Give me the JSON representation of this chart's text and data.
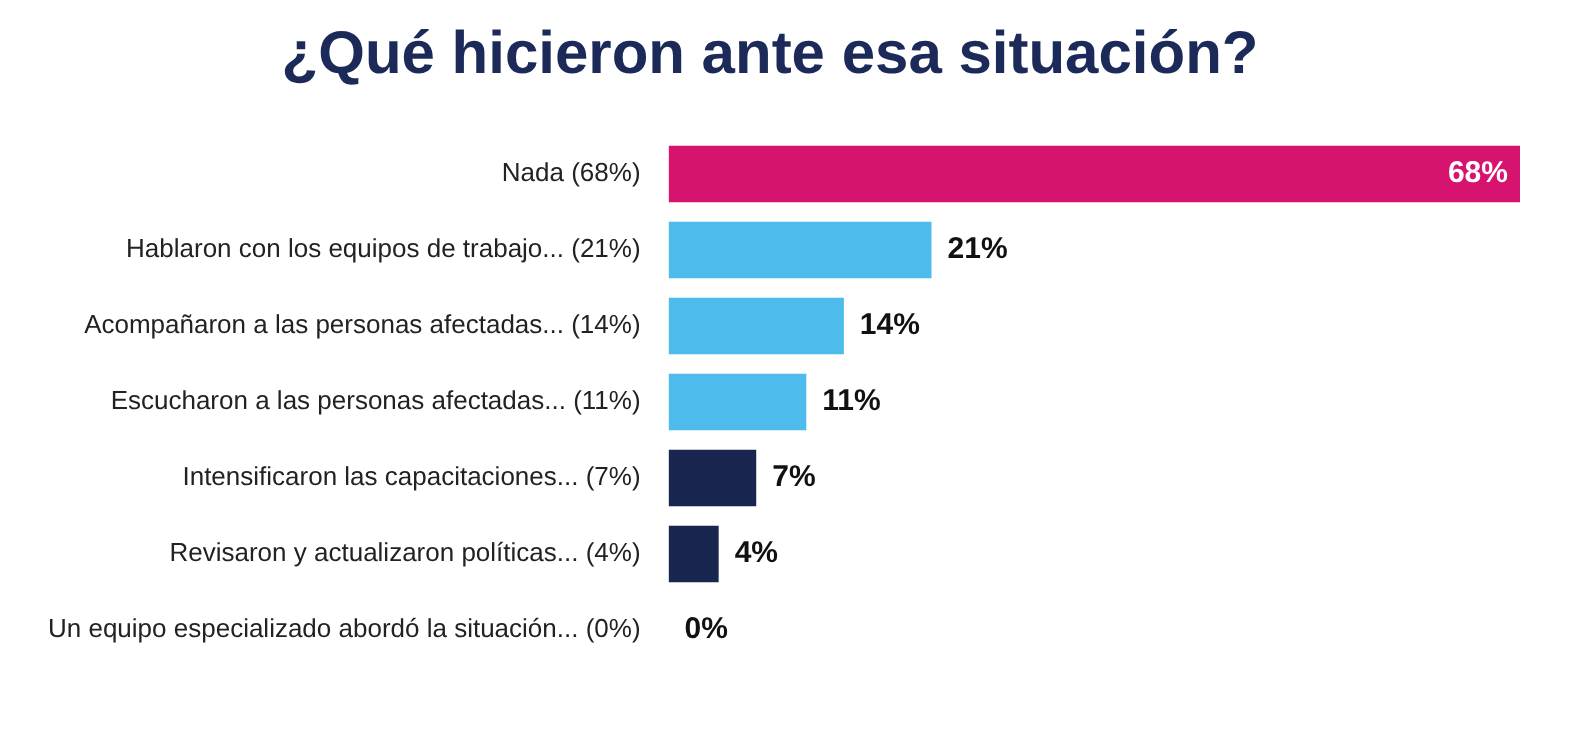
{
  "chart_data": {
    "type": "bar",
    "orientation": "horizontal",
    "title": "¿Qué hicieron ante esa situación?",
    "categories": [
      "Nada (68%)",
      "Hablaron con los equipos de trabajo... (21%)",
      "Acompañaron a las personas afectadas... (14%)",
      "Escucharon a las personas afectadas... (11%)",
      "Intensificaron las capacitaciones... (7%)",
      "Revisaron y actualizaron políticas... (4%)",
      "Un equipo especializado abordó la situación... (0%)"
    ],
    "values": [
      68,
      21,
      14,
      11,
      7,
      4,
      0
    ],
    "colors": [
      "#d6136e",
      "#4dbbec",
      "#4dbbec",
      "#4dbbec",
      "#18264f",
      "#18264f",
      "#18264f"
    ],
    "value_labels": [
      "68%",
      "21%",
      "14%",
      "11%",
      "7%",
      "4%",
      "0%"
    ],
    "grid": false,
    "legend": false
  }
}
